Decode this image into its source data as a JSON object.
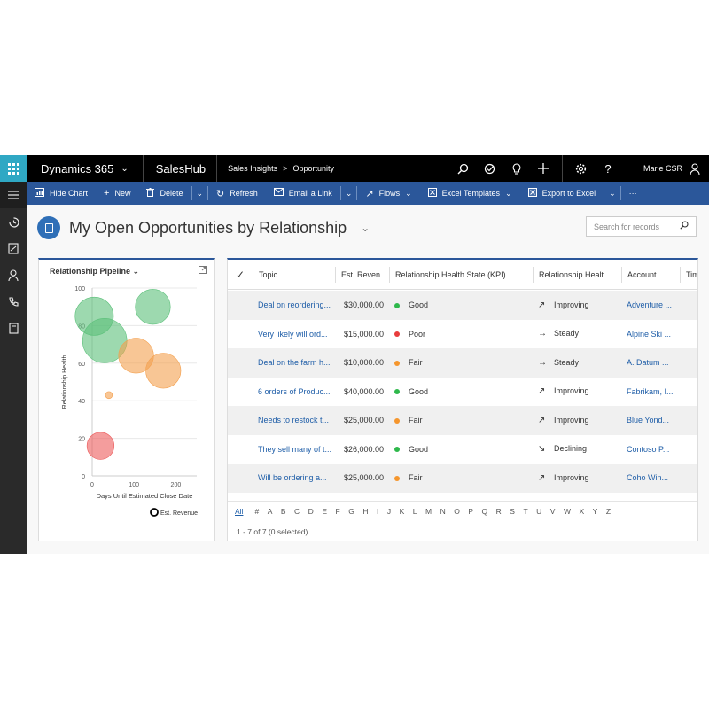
{
  "topbar": {
    "product": "Dynamics 365",
    "app": "SalesHub",
    "breadcrumb": [
      "Sales Insights",
      ">",
      "Opportunity"
    ],
    "user": "Marie CSR"
  },
  "commandbar": {
    "hide_chart": "Hide Chart",
    "new": "New",
    "delete": "Delete",
    "refresh": "Refresh",
    "email_link": "Email a Link",
    "flows": "Flows",
    "excel_templates": "Excel Templates",
    "export_excel": "Export to Excel",
    "more": "···"
  },
  "page": {
    "title": "My Open Opportunities by Relationship",
    "search_placeholder": "Search for records"
  },
  "chart": {
    "title": "Relationship Pipeline",
    "legend": "Est. Revenue"
  },
  "chart_data": {
    "type": "scatter",
    "title": "Relationship Pipeline",
    "xlabel": "Days Until Estimated Close Date",
    "ylabel": "Relationship Health",
    "xlim": [
      0,
      250
    ],
    "ylim": [
      0,
      100
    ],
    "xticks": [
      0,
      100,
      200
    ],
    "yticks": [
      0,
      20,
      40,
      60,
      80,
      100
    ],
    "grid": true,
    "legend": "bottom-right",
    "series": [
      {
        "name": "Est. Revenue",
        "points": [
          {
            "x": 5,
            "y": 85,
            "size": 30000,
            "color": "#5cc07a"
          },
          {
            "x": 145,
            "y": 90,
            "size": 25000,
            "color": "#5cc07a"
          },
          {
            "x": 30,
            "y": 72,
            "size": 40000,
            "color": "#5cc07a"
          },
          {
            "x": 105,
            "y": 64,
            "size": 25000,
            "color": "#f4a04e"
          },
          {
            "x": 170,
            "y": 56,
            "size": 25000,
            "color": "#f4a04e"
          },
          {
            "x": 40,
            "y": 43,
            "size": 1000,
            "color": "#f4a04e"
          },
          {
            "x": 20,
            "y": 16,
            "size": 15000,
            "color": "#ec5b5b"
          }
        ]
      }
    ]
  },
  "grid": {
    "columns": [
      "Topic",
      "Est. Reven...",
      "Relationship Health State (KPI)",
      "Relationship Healt...",
      "Account",
      "Tim"
    ],
    "rows": [
      {
        "topic": "Deal on reordering...",
        "revenue": "$30,000.00",
        "state": "Good",
        "state_color": "#2eb84b",
        "trend": "Improving",
        "trend_icon": "arrow-up-right-icon",
        "account": "Adventure ..."
      },
      {
        "topic": "Very likely will ord...",
        "revenue": "$15,000.00",
        "state": "Poor",
        "state_color": "#e83c3c",
        "trend": "Steady",
        "trend_icon": "arrow-right-icon",
        "account": "Alpine Ski ..."
      },
      {
        "topic": "Deal on the farm h...",
        "revenue": "$10,000.00",
        "state": "Fair",
        "state_color": "#f5962d",
        "trend": "Steady",
        "trend_icon": "arrow-right-icon",
        "account": "A. Datum ..."
      },
      {
        "topic": "6 orders of Produc...",
        "revenue": "$40,000.00",
        "state": "Good",
        "state_color": "#2eb84b",
        "trend": "Improving",
        "trend_icon": "arrow-up-right-icon",
        "account": "Fabrikam, I..."
      },
      {
        "topic": "Needs to restock t...",
        "revenue": "$25,000.00",
        "state": "Fair",
        "state_color": "#f5962d",
        "trend": "Improving",
        "trend_icon": "arrow-up-right-icon",
        "account": "Blue Yond..."
      },
      {
        "topic": "They sell many of t...",
        "revenue": "$26,000.00",
        "state": "Good",
        "state_color": "#2eb84b",
        "trend": "Declining",
        "trend_icon": "arrow-down-right-icon",
        "account": "Contoso P..."
      },
      {
        "topic": "Will be ordering a...",
        "revenue": "$25,000.00",
        "state": "Fair",
        "state_color": "#f5962d",
        "trend": "Improving",
        "trend_icon": "arrow-up-right-icon",
        "account": "Coho Win..."
      }
    ],
    "alphabet": [
      "All",
      "#",
      "A",
      "B",
      "C",
      "D",
      "E",
      "F",
      "G",
      "H",
      "I",
      "J",
      "K",
      "L",
      "M",
      "N",
      "O",
      "P",
      "Q",
      "R",
      "S",
      "T",
      "U",
      "V",
      "W",
      "X",
      "Y",
      "Z"
    ],
    "footer": "1 - 7 of 7 (0 selected)"
  }
}
